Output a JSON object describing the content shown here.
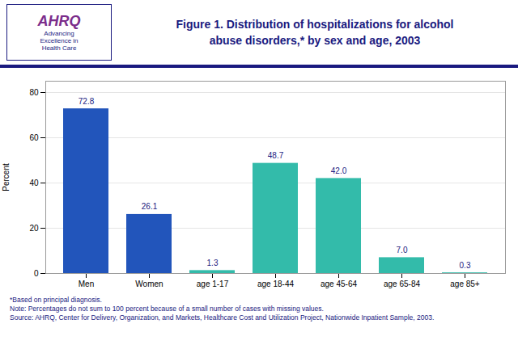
{
  "chart_data": {
    "type": "bar",
    "title": "Figure 1. Distribution of hospitalizations for alcohol\nabuse disorders,* by sex and age, 2003",
    "categories": [
      "Men",
      "Women",
      "age 1-17",
      "age 18-44",
      "age 45-64",
      "age 65-84",
      "age 85+"
    ],
    "values": [
      72.8,
      26.1,
      1.3,
      48.7,
      42.0,
      7.0,
      0.3
    ],
    "value_labels": [
      "72.8",
      "26.1",
      "1.3",
      "48.7",
      "42.0",
      "7.0",
      "0.3"
    ],
    "colors": [
      "#2255BB",
      "#2255BB",
      "#33BBAA",
      "#33BBAA",
      "#33BBAA",
      "#33BBAA",
      "#33BBAA"
    ],
    "ylabel": "Percent",
    "ylim": [
      0,
      85
    ],
    "yticks": [
      0,
      20,
      40,
      60,
      80
    ],
    "grid": true,
    "data_labels": true,
    "annotations": [
      "AHRQ",
      "Advancing\nExcellence in\nHealth Care",
      "*Based on principal diagnosis.",
      "Note: Percentages do not sum to 100 percent because of a small number of cases with missing values.",
      "Source: AHRQ, Center for Delivery, Organization, and Markets, Healthcare Cost and Utilization Project, Nationwide Inpatient Sample, 2003."
    ]
  }
}
